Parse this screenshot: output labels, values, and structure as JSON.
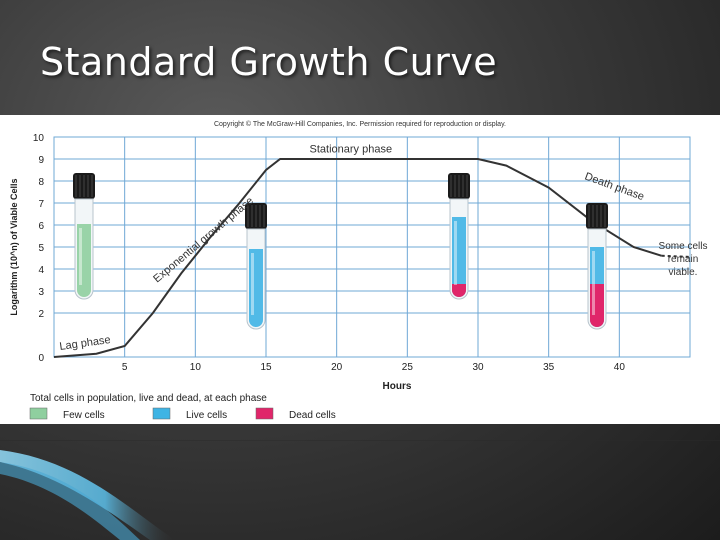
{
  "slide": {
    "title": "Standard Growth Curve",
    "copyright": "Copyright © The McGraw-Hill Companies, Inc. Permission required for reproduction or display."
  },
  "colors": {
    "grid": "#6fa8d6",
    "curve": "#333333",
    "few_cells": "#8fcf9f",
    "live_cells": "#3fb4e4",
    "dead_cells": "#e0266a"
  },
  "chart_data": {
    "type": "line",
    "title": "",
    "xlabel": "Hours",
    "ylabel": "Logarithm (10^n) of Viable Cells",
    "xlim": [
      0,
      45
    ],
    "ylim": [
      0,
      10
    ],
    "x_ticks": [
      5,
      10,
      15,
      20,
      25,
      30,
      35,
      40
    ],
    "y_ticks": [
      0,
      2,
      3,
      4,
      5,
      6,
      7,
      8,
      9,
      10
    ],
    "grid": true,
    "series": [
      {
        "points": [
          [
            0,
            0.0
          ],
          [
            3,
            0.15
          ],
          [
            5,
            0.5
          ],
          [
            7,
            2.0
          ],
          [
            9,
            3.8
          ],
          [
            11,
            5.4
          ],
          [
            13,
            6.9
          ],
          [
            15,
            8.5
          ],
          [
            16,
            9.0
          ],
          [
            20,
            9.0
          ],
          [
            25,
            9.0
          ],
          [
            30,
            9.0
          ],
          [
            32,
            8.7
          ],
          [
            35,
            7.7
          ],
          [
            38,
            6.2
          ],
          [
            41,
            5.0
          ],
          [
            43,
            4.6
          ]
        ],
        "dashed_after": [
          [
            43,
            4.6
          ],
          [
            45,
            4.55
          ]
        ]
      }
    ],
    "annotations": {
      "lag": "Lag phase",
      "exponential": "Exponential growth phase",
      "stationary": "Stationary phase",
      "death": "Death phase",
      "viable": [
        "Some cells",
        "remain",
        "viable."
      ]
    },
    "legend": {
      "caption": "Total cells in population, live and dead, at each phase",
      "items": [
        {
          "label": "Few cells",
          "color": "#8fcf9f"
        },
        {
          "label": "Live cells",
          "color": "#3fb4e4"
        },
        {
          "label": "Dead cells",
          "color": "#e0266a"
        }
      ]
    },
    "tubes": [
      {
        "phase": "lag",
        "fill": "few",
        "level": 0.75,
        "dead": 0.0
      },
      {
        "phase": "exponential",
        "fill": "live",
        "level": 0.8,
        "dead": 0.0
      },
      {
        "phase": "stationary",
        "fill": "live",
        "level": 0.82,
        "dead": 0.15
      },
      {
        "phase": "death",
        "fill": "live",
        "level": 0.82,
        "dead": 0.45
      }
    ]
  }
}
